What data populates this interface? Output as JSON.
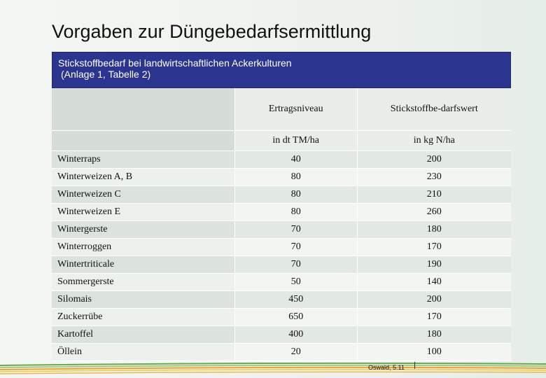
{
  "slide": {
    "title": "Vorgaben zur Düngebedarfsermittlung",
    "header_line1": "Stickstoffbedarf bei landwirtschaftlichen  Ackerkulturen",
    "header_line2": "(Anlage 1, Tabelle 2)"
  },
  "table": {
    "col_headers": [
      "",
      "Ertragsniveau",
      "Stickstoffbe-darfswert"
    ],
    "units": [
      "",
      "in dt TM/ha",
      "in kg N/ha"
    ],
    "rows": [
      [
        "Winterraps",
        "40",
        "200"
      ],
      [
        "Winterweizen A, B",
        "80",
        "230"
      ],
      [
        "Winterweizen C",
        "80",
        "210"
      ],
      [
        "Winterweizen E",
        "80",
        "260"
      ],
      [
        "Wintergerste",
        "70",
        "180"
      ],
      [
        "Winterroggen",
        "70",
        "170"
      ],
      [
        "Wintertriticale",
        "70",
        "190"
      ],
      [
        "Sommergerste",
        "50",
        "140"
      ],
      [
        "Silomais",
        "450",
        "200"
      ],
      [
        "Zuckerrübe",
        "650",
        "170"
      ],
      [
        "Kartoffel",
        "400",
        "180"
      ],
      [
        "Öllein",
        "20",
        "100"
      ]
    ]
  },
  "footer": {
    "author": "Oswald, 5.11"
  },
  "colors": {
    "header_band": "#2b3590",
    "stripe_green": "#6aa84f",
    "stripe_orange": "#f0a030",
    "stripe_yellow": "#e8d040"
  }
}
